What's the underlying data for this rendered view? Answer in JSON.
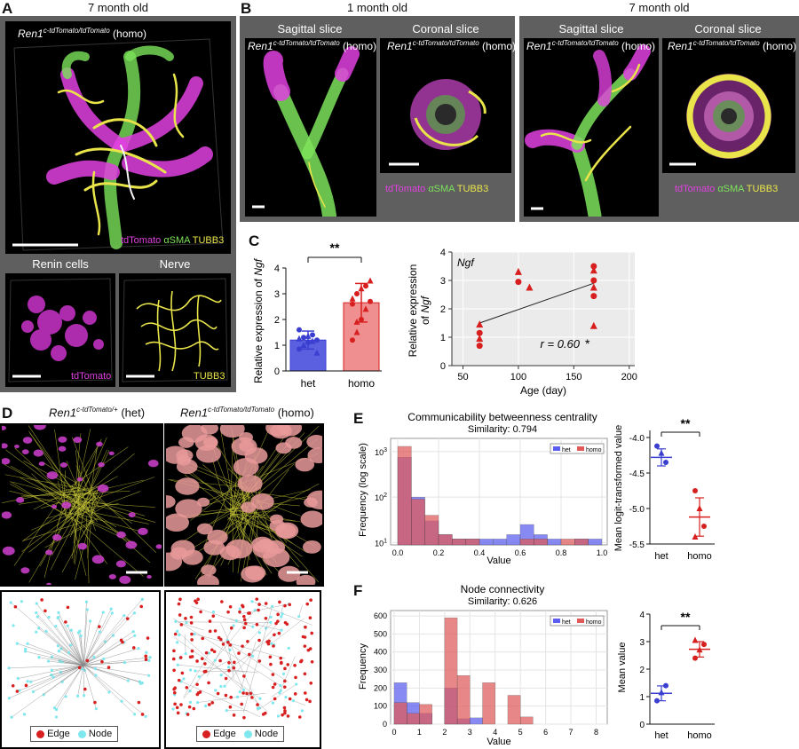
{
  "panels": {
    "A": {
      "letter": "A",
      "title": "7 month old",
      "genotype_prefix": "Ren1",
      "genotype_sup": "c-tdTomato/tdTomato",
      "genotype_suffix": " (homo)",
      "stain_legend": [
        "tdTomato",
        "αSMA",
        "TUBB3"
      ],
      "sub_titles": [
        "Renin cells",
        "Nerve"
      ],
      "sub_labels": [
        "tdTomato",
        "TUBB3"
      ]
    },
    "B": {
      "letter": "B",
      "age_titles": [
        "1 month old",
        "7 month old"
      ],
      "slice_titles": [
        "Sagittal slice",
        "Coronal slice",
        "Sagittal slice",
        "Coronal slice"
      ],
      "genotype_prefix": "Ren1",
      "genotype_sup": "c-tdTomato/tdTomato",
      "genotype_suffix": " (homo)",
      "stain_legend": [
        "tdTomato",
        "αSMA",
        "TUBB3"
      ]
    },
    "C": {
      "letter": "C",
      "bar": {
        "ylabel_prefix": "Relative expression of ",
        "ylabel_gene": "Ngf",
        "categories": [
          "het",
          "homo"
        ],
        "sig": "**",
        "yticks": [
          "0",
          "1",
          "2",
          "3",
          "4"
        ]
      },
      "scatter": {
        "gene": "Ngf",
        "ylabel_1": "Relative expression",
        "ylabel_2_prefix": "of ",
        "ylabel_2_gene": "Ngf",
        "xlabel": "Age (day)",
        "xticks": [
          "50",
          "100",
          "150",
          "200"
        ],
        "yticks": [
          "0",
          "1",
          "2",
          "3",
          "4"
        ],
        "r_text": "r = 0.60",
        "r_sig": "*"
      }
    },
    "D": {
      "letter": "D",
      "left_prefix": "Ren1",
      "left_sup": "c-tdTomato/+",
      "left_suffix": " (het)",
      "right_prefix": "Ren1",
      "right_sup": "c-tdTomato/tdTomato",
      "right_suffix": " (homo)",
      "legend_edge": "Edge",
      "legend_node": "Node"
    },
    "E": {
      "letter": "E",
      "title": "Communicability betweenness centrality",
      "subtitle": "Similarity: 0.794",
      "ylabel": "Frequency (log scale)",
      "xlabel": "Value",
      "legend": [
        "het",
        "homo"
      ],
      "xticks": [
        "0.0",
        "0.2",
        "0.4",
        "0.6",
        "0.8",
        "1.0"
      ],
      "dot_ylabel": "Mean logit-transformed value",
      "dot_yticks": [
        "-4.0",
        "-4.5",
        "-5.0",
        "-5.5"
      ],
      "dot_categories": [
        "het",
        "homo"
      ],
      "sig": "**"
    },
    "F": {
      "letter": "F",
      "title": "Node connectivity",
      "subtitle": "Similarity: 0.626",
      "ylabel": "Frequency",
      "xlabel": "Value",
      "legend": [
        "het",
        "homo"
      ],
      "yticks": [
        "0",
        "100",
        "200",
        "300",
        "400",
        "500",
        "600"
      ],
      "xticks": [
        "0",
        "1",
        "2",
        "3",
        "4",
        "5",
        "6",
        "7",
        "8"
      ],
      "dot_ylabel": "Mean value",
      "dot_yticks": [
        "0",
        "1",
        "2",
        "3",
        "4"
      ],
      "dot_categories": [
        "het",
        "homo"
      ],
      "sig": "**"
    }
  },
  "colors": {
    "het": "#3a3fd0",
    "homo": "#d81f1f",
    "het_fill": "#5a60e0",
    "homo_fill": "#ef8f8f",
    "hist_het": "#5b5ef0",
    "hist_homo": "#e05a5a",
    "magenta": "#e040e0",
    "green": "#7ce35a",
    "yellow": "#e9e44a"
  },
  "chart_data": [
    {
      "type": "bar",
      "id": "C-bar",
      "categories": [
        "het",
        "homo"
      ],
      "values": [
        1.2,
        2.65
      ],
      "errors": [
        0.35,
        0.75
      ],
      "points": {
        "het": [
          0.85,
          1.0,
          1.1,
          1.15,
          1.2,
          1.25,
          1.3,
          1.35,
          1.4,
          0.7,
          1.6
        ],
        "homo": [
          1.2,
          1.5,
          2.0,
          2.4,
          2.7,
          2.8,
          3.0,
          3.2,
          3.3,
          3.5,
          2.6,
          1.9
        ]
      },
      "ylabel": "Relative expression of Ngf",
      "ylim": [
        0,
        4
      ]
    },
    {
      "type": "scatter",
      "id": "C-scatter",
      "title": "Ngf",
      "x": [
        65,
        65,
        65,
        65,
        100,
        100,
        110,
        168,
        168,
        168,
        168,
        168,
        168
      ],
      "y": [
        1.45,
        1.15,
        0.95,
        0.7,
        3.3,
        2.95,
        2.75,
        3.5,
        3.35,
        3.0,
        2.75,
        2.45,
        1.4
      ],
      "fit": {
        "x": [
          65,
          168
        ],
        "y": [
          1.5,
          2.9
        ]
      },
      "r": 0.6,
      "xlabel": "Age (day)",
      "ylabel": "Relative expression of Ngf",
      "xlim": [
        40,
        205
      ],
      "ylim": [
        0,
        4
      ]
    },
    {
      "type": "bar",
      "id": "E-hist",
      "title": "Communicability betweenness centrality",
      "subtitle": "Similarity: 0.794",
      "log_y": true,
      "bin_edges": [
        0.0,
        0.067,
        0.133,
        0.2,
        0.267,
        0.333,
        0.4,
        0.467,
        0.533,
        0.6,
        0.667,
        0.733,
        0.8,
        0.867,
        0.933,
        1.0
      ],
      "series": [
        {
          "name": "het",
          "values": [
            750,
            100,
            30,
            15,
            12,
            12,
            12,
            12,
            15,
            25,
            15,
            12,
            0,
            12,
            12
          ]
        },
        {
          "name": "homo",
          "values": [
            1300,
            90,
            40,
            15,
            12,
            12,
            0,
            0,
            0,
            12,
            12,
            0,
            12,
            12,
            0
          ]
        }
      ],
      "xlabel": "Value",
      "ylabel": "Frequency (log scale)"
    },
    {
      "type": "scatter",
      "id": "E-dots",
      "categories": [
        "het",
        "homo"
      ],
      "points": {
        "het": [
          -4.12,
          -4.22,
          -4.35
        ],
        "homo": [
          -4.75,
          -5.0,
          -5.25,
          -5.4
        ]
      },
      "means": [
        -4.28,
        -5.12
      ],
      "sd": [
        0.12,
        0.27
      ],
      "ylabel": "Mean logit-transformed value",
      "ylim": [
        -5.5,
        -3.9
      ]
    },
    {
      "type": "bar",
      "id": "F-hist",
      "title": "Node connectivity",
      "subtitle": "Similarity: 0.626",
      "bin_edges": [
        0,
        0.5,
        1,
        1.5,
        2,
        2.5,
        3,
        3.5,
        4,
        4.5,
        5,
        5.5,
        6,
        6.5,
        7,
        7.5,
        8
      ],
      "series": [
        {
          "name": "het",
          "values": [
            230,
            120,
            60,
            0,
            200,
            30,
            35,
            0,
            0,
            0,
            0,
            0,
            0,
            0,
            0,
            0
          ]
        },
        {
          "name": "homo",
          "values": [
            120,
            60,
            110,
            0,
            590,
            270,
            0,
            230,
            0,
            160,
            40,
            0,
            0,
            0,
            0,
            0
          ]
        }
      ],
      "xlabel": "Value",
      "ylabel": "Frequency",
      "ylim": [
        0,
        620
      ]
    },
    {
      "type": "scatter",
      "id": "F-dots",
      "categories": [
        "het",
        "homo"
      ],
      "points": {
        "het": [
          0.85,
          1.15,
          1.4
        ],
        "homo": [
          2.4,
          2.7,
          2.9,
          3.05
        ]
      },
      "means": [
        1.12,
        2.72
      ],
      "sd": [
        0.27,
        0.28
      ],
      "ylabel": "Mean value",
      "ylim": [
        0,
        4
      ]
    }
  ]
}
